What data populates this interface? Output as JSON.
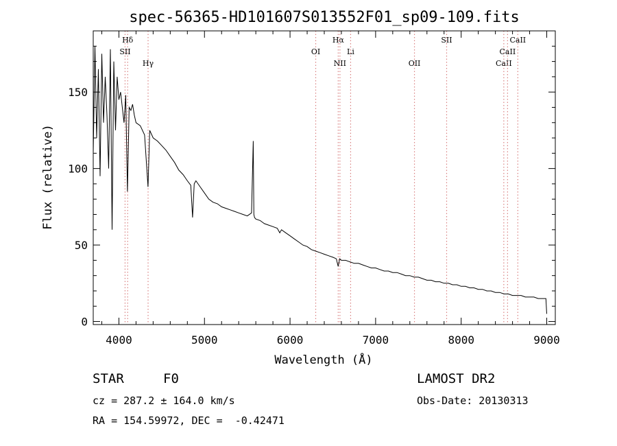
{
  "chart_data": {
    "type": "line",
    "title": "spec-56365-HD101607S013552F01_sp09-109.fits",
    "xlabel": "Wavelength (Å)",
    "ylabel": "Flux (relative)",
    "xlim": [
      3700,
      9100
    ],
    "ylim": [
      -2,
      190
    ],
    "xticks": [
      4000,
      5000,
      6000,
      7000,
      8000,
      9000
    ],
    "yticks": [
      0,
      50,
      100,
      150
    ],
    "grid": false,
    "series": [
      {
        "x": [
          3700,
          3720,
          3740,
          3760,
          3780,
          3800,
          3820,
          3840,
          3860,
          3880,
          3900,
          3920,
          3940,
          3960,
          3980,
          4000,
          4020,
          4040,
          4060,
          4080,
          4100,
          4120,
          4140,
          4160,
          4180,
          4200,
          4250,
          4300,
          4340,
          4360,
          4400,
          4450,
          4500,
          4550,
          4600,
          4650,
          4700,
          4750,
          4800,
          4840,
          4861,
          4880,
          4900,
          4950,
          5000,
          5050,
          5100,
          5150,
          5200,
          5250,
          5300,
          5350,
          5400,
          5450,
          5500,
          5550,
          5570,
          5577,
          5585,
          5600,
          5650,
          5700,
          5750,
          5800,
          5850,
          5880,
          5900,
          5950,
          6000,
          6050,
          6100,
          6150,
          6200,
          6250,
          6300,
          6350,
          6400,
          6450,
          6500,
          6540,
          6563,
          6580,
          6600,
          6650,
          6700,
          6750,
          6800,
          6850,
          6900,
          6950,
          7000,
          7050,
          7100,
          7150,
          7200,
          7250,
          7300,
          7350,
          7400,
          7450,
          7500,
          7550,
          7600,
          7650,
          7700,
          7750,
          7800,
          7850,
          7900,
          7950,
          8000,
          8050,
          8100,
          8150,
          8200,
          8250,
          8300,
          8350,
          8400,
          8450,
          8500,
          8550,
          8600,
          8650,
          8700,
          8750,
          8800,
          8850,
          8900,
          8950,
          8990,
          9000
        ],
        "y": [
          110,
          180,
          120,
          165,
          95,
          175,
          130,
          160,
          135,
          100,
          178,
          60,
          170,
          125,
          160,
          145,
          150,
          140,
          130,
          148,
          85,
          140,
          138,
          142,
          135,
          130,
          128,
          122,
          88,
          125,
          120,
          118,
          115,
          112,
          108,
          104,
          99,
          96,
          92,
          89,
          68,
          90,
          92,
          88,
          84,
          80,
          78,
          77,
          75,
          74,
          73,
          72,
          71,
          70,
          69,
          71,
          118,
          70,
          68,
          67,
          66,
          64,
          63,
          62,
          61,
          58,
          60,
          58,
          56,
          54,
          52,
          50,
          49,
          47,
          46,
          45,
          44,
          43,
          42,
          41,
          36,
          41,
          40,
          40,
          39,
          38,
          38,
          37,
          36,
          35,
          35,
          34,
          33,
          33,
          32,
          32,
          31,
          30,
          30,
          29,
          29,
          28,
          27,
          27,
          26,
          26,
          25,
          25,
          24,
          24,
          23,
          23,
          22,
          22,
          21,
          21,
          20,
          20,
          19,
          19,
          18,
          18,
          17,
          17,
          17,
          16,
          16,
          16,
          15,
          15,
          15,
          5
        ]
      }
    ],
    "line_markers": [
      {
        "wl": 4102,
        "label": "Hδ",
        "row": 1
      },
      {
        "wl": 4072,
        "label": "SII",
        "row": 2
      },
      {
        "wl": 4341,
        "label": "Hγ",
        "row": 3
      },
      {
        "wl": 6300,
        "label": "OI",
        "row": 2
      },
      {
        "wl": 6563,
        "label": "Hα",
        "row": 1
      },
      {
        "wl": 6583,
        "label": "NII",
        "row": 3
      },
      {
        "wl": 6708,
        "label": "Li",
        "row": 2
      },
      {
        "wl": 7454,
        "label": "OII",
        "row": 3
      },
      {
        "wl": 7830,
        "label": "SII",
        "row": 1
      },
      {
        "wl": 8498,
        "label": "CaII",
        "row": 3
      },
      {
        "wl": 8542,
        "label": "CaII",
        "row": 2
      },
      {
        "wl": 8662,
        "label": "CaII",
        "row": 1
      }
    ],
    "marker_color": "#d98080"
  },
  "info": {
    "object_class": "STAR",
    "subclass": "F0",
    "survey": "LAMOST DR2",
    "cz": "cz = 287.2 ± 164.0 km/s",
    "obs_date": "Obs-Date: 20130313",
    "coords": "RA = 154.59972, DEC =  -0.42471"
  }
}
